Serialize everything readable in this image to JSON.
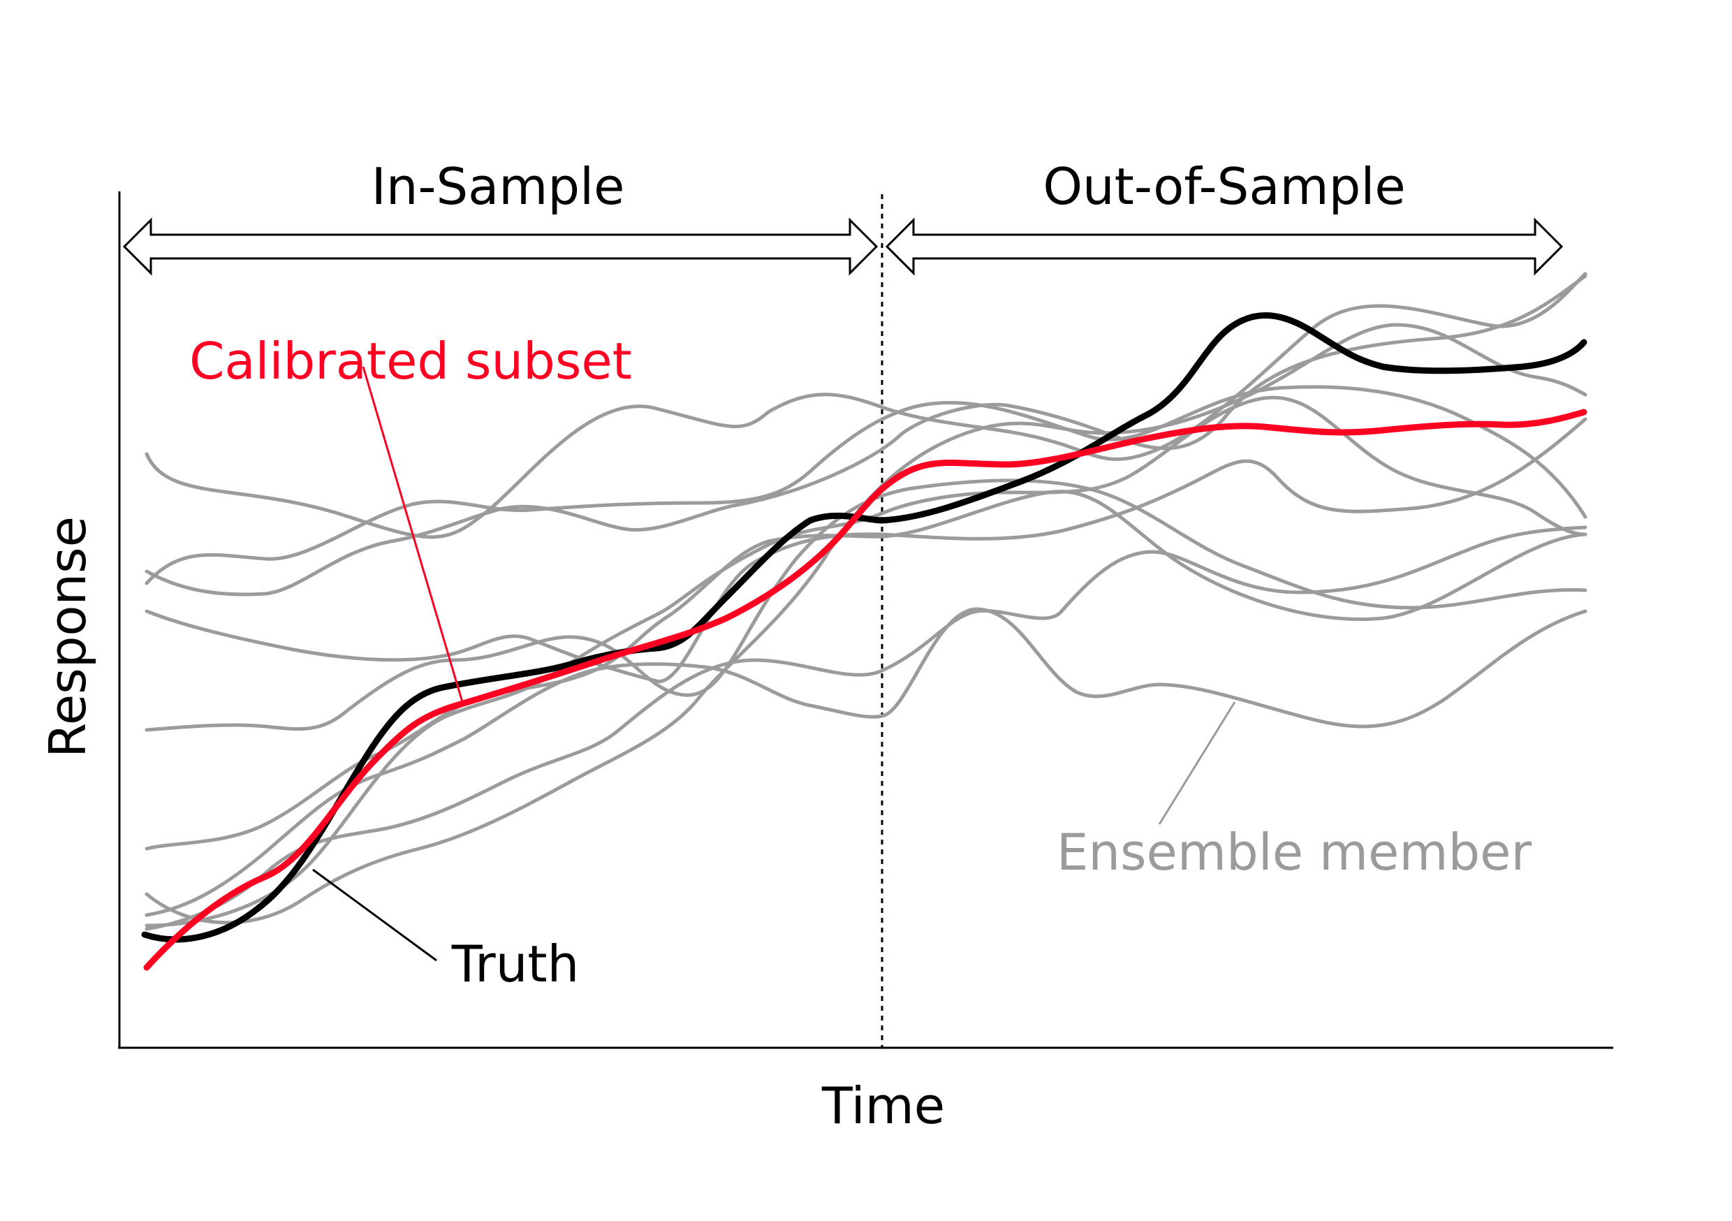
{
  "labels": {
    "in_sample": "In-Sample",
    "out_of_sample": "Out-of-Sample",
    "calibrated": "Calibrated subset",
    "truth": "Truth",
    "ensemble": "Ensemble member",
    "x_axis": "Time",
    "y_axis": "Response"
  },
  "colors": {
    "ensemble": "#9b9b9b",
    "truth": "#000000",
    "calibrated": "#ff0022",
    "axis": "#000000"
  }
}
